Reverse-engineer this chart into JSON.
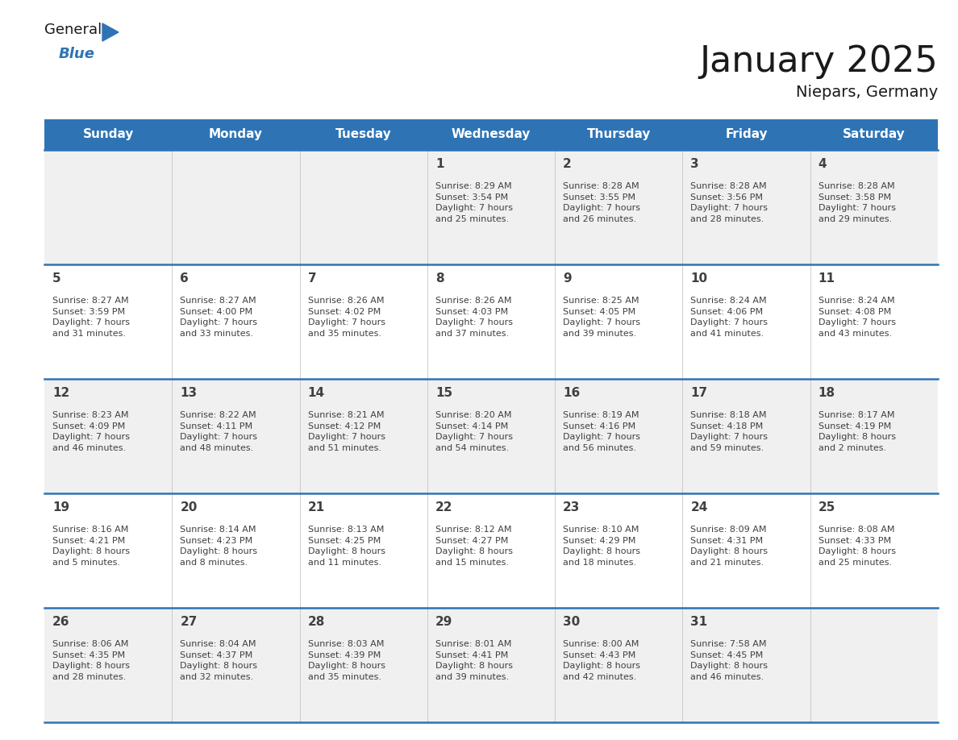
{
  "title": "January 2025",
  "subtitle": "Niepars, Germany",
  "header_bg_color": "#2E74B5",
  "header_text_color": "#FFFFFF",
  "row_bg_even": "#F0F0F0",
  "row_bg_odd": "#FFFFFF",
  "separator_color": "#2E74B5",
  "text_color": "#404040",
  "days_of_week": [
    "Sunday",
    "Monday",
    "Tuesday",
    "Wednesday",
    "Thursday",
    "Friday",
    "Saturday"
  ],
  "calendar_data": [
    [
      {
        "day": null
      },
      {
        "day": null
      },
      {
        "day": null
      },
      {
        "day": 1,
        "sunrise": "8:29 AM",
        "sunset": "3:54 PM",
        "daylight": "7 hours\nand 25 minutes."
      },
      {
        "day": 2,
        "sunrise": "8:28 AM",
        "sunset": "3:55 PM",
        "daylight": "7 hours\nand 26 minutes."
      },
      {
        "day": 3,
        "sunrise": "8:28 AM",
        "sunset": "3:56 PM",
        "daylight": "7 hours\nand 28 minutes."
      },
      {
        "day": 4,
        "sunrise": "8:28 AM",
        "sunset": "3:58 PM",
        "daylight": "7 hours\nand 29 minutes."
      }
    ],
    [
      {
        "day": 5,
        "sunrise": "8:27 AM",
        "sunset": "3:59 PM",
        "daylight": "7 hours\nand 31 minutes."
      },
      {
        "day": 6,
        "sunrise": "8:27 AM",
        "sunset": "4:00 PM",
        "daylight": "7 hours\nand 33 minutes."
      },
      {
        "day": 7,
        "sunrise": "8:26 AM",
        "sunset": "4:02 PM",
        "daylight": "7 hours\nand 35 minutes."
      },
      {
        "day": 8,
        "sunrise": "8:26 AM",
        "sunset": "4:03 PM",
        "daylight": "7 hours\nand 37 minutes."
      },
      {
        "day": 9,
        "sunrise": "8:25 AM",
        "sunset": "4:05 PM",
        "daylight": "7 hours\nand 39 minutes."
      },
      {
        "day": 10,
        "sunrise": "8:24 AM",
        "sunset": "4:06 PM",
        "daylight": "7 hours\nand 41 minutes."
      },
      {
        "day": 11,
        "sunrise": "8:24 AM",
        "sunset": "4:08 PM",
        "daylight": "7 hours\nand 43 minutes."
      }
    ],
    [
      {
        "day": 12,
        "sunrise": "8:23 AM",
        "sunset": "4:09 PM",
        "daylight": "7 hours\nand 46 minutes."
      },
      {
        "day": 13,
        "sunrise": "8:22 AM",
        "sunset": "4:11 PM",
        "daylight": "7 hours\nand 48 minutes."
      },
      {
        "day": 14,
        "sunrise": "8:21 AM",
        "sunset": "4:12 PM",
        "daylight": "7 hours\nand 51 minutes."
      },
      {
        "day": 15,
        "sunrise": "8:20 AM",
        "sunset": "4:14 PM",
        "daylight": "7 hours\nand 54 minutes."
      },
      {
        "day": 16,
        "sunrise": "8:19 AM",
        "sunset": "4:16 PM",
        "daylight": "7 hours\nand 56 minutes."
      },
      {
        "day": 17,
        "sunrise": "8:18 AM",
        "sunset": "4:18 PM",
        "daylight": "7 hours\nand 59 minutes."
      },
      {
        "day": 18,
        "sunrise": "8:17 AM",
        "sunset": "4:19 PM",
        "daylight": "8 hours\nand 2 minutes."
      }
    ],
    [
      {
        "day": 19,
        "sunrise": "8:16 AM",
        "sunset": "4:21 PM",
        "daylight": "8 hours\nand 5 minutes."
      },
      {
        "day": 20,
        "sunrise": "8:14 AM",
        "sunset": "4:23 PM",
        "daylight": "8 hours\nand 8 minutes."
      },
      {
        "day": 21,
        "sunrise": "8:13 AM",
        "sunset": "4:25 PM",
        "daylight": "8 hours\nand 11 minutes."
      },
      {
        "day": 22,
        "sunrise": "8:12 AM",
        "sunset": "4:27 PM",
        "daylight": "8 hours\nand 15 minutes."
      },
      {
        "day": 23,
        "sunrise": "8:10 AM",
        "sunset": "4:29 PM",
        "daylight": "8 hours\nand 18 minutes."
      },
      {
        "day": 24,
        "sunrise": "8:09 AM",
        "sunset": "4:31 PM",
        "daylight": "8 hours\nand 21 minutes."
      },
      {
        "day": 25,
        "sunrise": "8:08 AM",
        "sunset": "4:33 PM",
        "daylight": "8 hours\nand 25 minutes."
      }
    ],
    [
      {
        "day": 26,
        "sunrise": "8:06 AM",
        "sunset": "4:35 PM",
        "daylight": "8 hours\nand 28 minutes."
      },
      {
        "day": 27,
        "sunrise": "8:04 AM",
        "sunset": "4:37 PM",
        "daylight": "8 hours\nand 32 minutes."
      },
      {
        "day": 28,
        "sunrise": "8:03 AM",
        "sunset": "4:39 PM",
        "daylight": "8 hours\nand 35 minutes."
      },
      {
        "day": 29,
        "sunrise": "8:01 AM",
        "sunset": "4:41 PM",
        "daylight": "8 hours\nand 39 minutes."
      },
      {
        "day": 30,
        "sunrise": "8:00 AM",
        "sunset": "4:43 PM",
        "daylight": "8 hours\nand 42 minutes."
      },
      {
        "day": 31,
        "sunrise": "7:58 AM",
        "sunset": "4:45 PM",
        "daylight": "8 hours\nand 46 minutes."
      },
      {
        "day": null
      }
    ]
  ],
  "logo_text_general": "General",
  "logo_text_blue": "Blue",
  "logo_color_general": "#1a1a1a",
  "logo_color_blue": "#2E74B5",
  "logo_triangle_color": "#2E74B5",
  "title_fontsize": 32,
  "subtitle_fontsize": 14,
  "header_fontsize": 11,
  "day_num_fontsize": 11,
  "cell_text_fontsize": 8
}
